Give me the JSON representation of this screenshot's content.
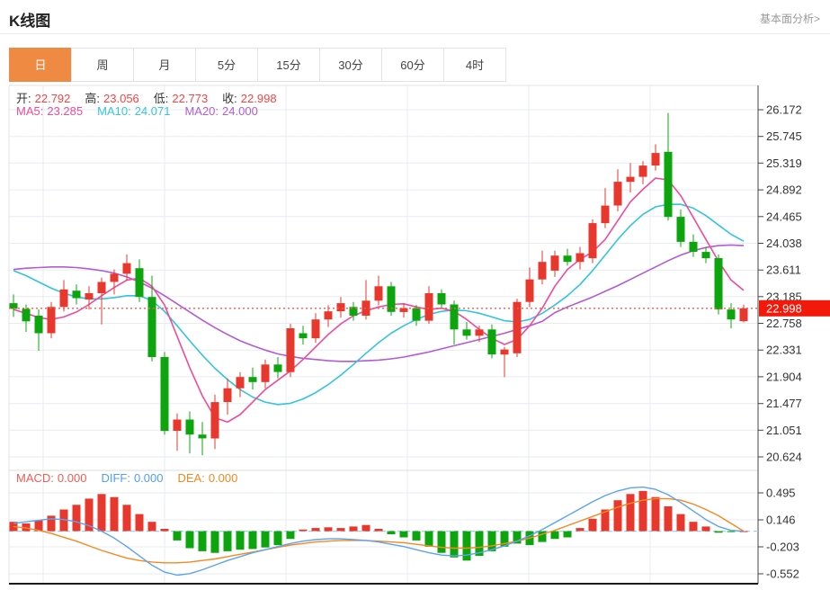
{
  "header": {
    "title": "K线图",
    "link": "基本面分析>"
  },
  "tabs": {
    "items": [
      "日",
      "周",
      "月",
      "5分",
      "15分",
      "30分",
      "60分",
      "4时"
    ],
    "active_index": 0
  },
  "legend": {
    "ohlc": [
      {
        "label": "开:",
        "value": "22.792"
      },
      {
        "label": "高:",
        "value": "23.056"
      },
      {
        "label": "低:",
        "value": "22.773"
      },
      {
        "label": "收:",
        "value": "22.998"
      }
    ],
    "ma": [
      {
        "label": "MA5:",
        "value": "23.285",
        "color": "#f04a9b"
      },
      {
        "label": "MA10:",
        "value": "24.071",
        "color": "#33c4de"
      },
      {
        "label": "MA20:",
        "value": "24.000",
        "color": "#b35bd1"
      }
    ],
    "macd": [
      {
        "label": "MACD:",
        "value": "0.000",
        "color": "#f25a52"
      },
      {
        "label": "DIFF:",
        "value": "0.000",
        "color": "#4f9ff2"
      },
      {
        "label": "DEA:",
        "value": "0.000",
        "color": "#f6871c"
      }
    ]
  },
  "colors": {
    "up": "#e8372c",
    "down": "#0da50d",
    "ma5": "#f04a9b",
    "ma10": "#33c4de",
    "ma20": "#b35bd1",
    "diff_line": "#5ba4ef",
    "dea_line": "#f5881f",
    "grid": "#e9ebf2",
    "axis": "#444444",
    "label": "#333333",
    "tab_active": "#ef8a43",
    "badge": "#f2180a",
    "dotted": "#ee5f52",
    "zero_dash": "#9fd4f0",
    "ohlc_label": "#333333",
    "ohlc_value": "#f54343"
  },
  "chart_data": {
    "type": "candlestick+macd",
    "price_axis": {
      "ticks": [
        "26.172",
        "25.745",
        "25.319",
        "24.892",
        "24.465",
        "24.038",
        "23.611",
        "23.185",
        "22.758",
        "22.331",
        "21.904",
        "21.477",
        "21.051",
        "20.624"
      ],
      "current": 22.998,
      "current_label": "22.998"
    },
    "macd_axis": {
      "ticks": [
        "0.495",
        "0.146",
        "-0.203",
        "-0.552"
      ]
    },
    "candles": [
      [
        23.08,
        23.22,
        22.86,
        22.99
      ],
      [
        22.99,
        23.06,
        22.62,
        22.79
      ],
      [
        22.88,
        22.98,
        22.32,
        22.6
      ],
      [
        22.6,
        23.1,
        22.52,
        23.02
      ],
      [
        23.02,
        23.45,
        22.95,
        23.3
      ],
      [
        23.28,
        23.38,
        23.06,
        23.16
      ],
      [
        23.14,
        23.35,
        22.98,
        23.24
      ],
      [
        23.24,
        23.49,
        22.74,
        23.42
      ],
      [
        23.42,
        23.62,
        23.22,
        23.55
      ],
      [
        23.55,
        23.86,
        23.44,
        23.72
      ],
      [
        23.64,
        23.78,
        23.1,
        23.18
      ],
      [
        23.18,
        23.52,
        22.15,
        22.22
      ],
      [
        22.22,
        22.3,
        20.98,
        21.04
      ],
      [
        21.04,
        21.32,
        20.72,
        21.22
      ],
      [
        21.22,
        21.35,
        20.68,
        20.98
      ],
      [
        20.98,
        21.18,
        20.65,
        20.92
      ],
      [
        20.92,
        21.62,
        20.75,
        21.5
      ],
      [
        21.5,
        21.88,
        21.3,
        21.72
      ],
      [
        21.72,
        21.98,
        21.58,
        21.9
      ],
      [
        21.9,
        22.05,
        21.7,
        21.82
      ],
      [
        21.82,
        22.18,
        21.72,
        22.1
      ],
      [
        22.1,
        22.22,
        21.88,
        21.98
      ],
      [
        21.98,
        22.75,
        21.9,
        22.68
      ],
      [
        22.6,
        22.72,
        22.42,
        22.52
      ],
      [
        22.52,
        22.92,
        22.45,
        22.82
      ],
      [
        22.82,
        23.05,
        22.7,
        22.95
      ],
      [
        22.95,
        23.18,
        22.85,
        23.08
      ],
      [
        23.02,
        23.1,
        22.8,
        22.88
      ],
      [
        22.88,
        23.45,
        22.82,
        23.12
      ],
      [
        23.12,
        23.52,
        23.05,
        23.35
      ],
      [
        23.35,
        23.42,
        22.88,
        22.94
      ],
      [
        22.94,
        23.08,
        22.85,
        23.0
      ],
      [
        23.0,
        23.05,
        22.72,
        22.8
      ],
      [
        22.8,
        23.35,
        22.75,
        23.24
      ],
      [
        23.24,
        23.3,
        23.0,
        23.06
      ],
      [
        23.06,
        23.12,
        22.42,
        22.66
      ],
      [
        22.66,
        22.78,
        22.5,
        22.56
      ],
      [
        22.56,
        22.72,
        22.46,
        22.66
      ],
      [
        22.66,
        22.74,
        22.2,
        22.26
      ],
      [
        22.26,
        22.38,
        21.9,
        22.34
      ],
      [
        22.28,
        23.15,
        22.22,
        23.1
      ],
      [
        23.1,
        23.65,
        23.02,
        23.46
      ],
      [
        23.46,
        23.92,
        23.38,
        23.74
      ],
      [
        23.6,
        23.92,
        23.5,
        23.84
      ],
      [
        23.84,
        23.95,
        23.68,
        23.74
      ],
      [
        23.74,
        23.98,
        23.62,
        23.88
      ],
      [
        23.8,
        24.42,
        23.72,
        24.36
      ],
      [
        24.36,
        24.92,
        24.28,
        24.64
      ],
      [
        24.64,
        25.22,
        24.55,
        25.02
      ],
      [
        25.02,
        25.32,
        24.85,
        25.1
      ],
      [
        25.1,
        25.35,
        24.98,
        25.28
      ],
      [
        25.28,
        25.62,
        25.2,
        25.48
      ],
      [
        25.5,
        26.12,
        24.4,
        24.46
      ],
      [
        24.46,
        24.58,
        23.98,
        24.06
      ],
      [
        24.06,
        24.18,
        23.82,
        23.9
      ],
      [
        23.9,
        23.98,
        23.72,
        23.8
      ],
      [
        23.8,
        23.86,
        22.9,
        22.98
      ],
      [
        22.98,
        23.08,
        22.68,
        22.82
      ],
      [
        22.792,
        23.056,
        22.773,
        22.998
      ]
    ],
    "ma5": [
      22.98,
      22.92,
      22.85,
      22.82,
      22.86,
      22.94,
      23.06,
      23.2,
      23.33,
      23.45,
      23.48,
      23.35,
      23.05,
      22.55,
      22.05,
      21.6,
      21.25,
      21.18,
      21.3,
      21.5,
      21.7,
      21.85,
      22.0,
      22.18,
      22.38,
      22.58,
      22.75,
      22.88,
      22.96,
      23.02,
      23.06,
      23.07,
      23.02,
      22.98,
      23.0,
      22.95,
      22.82,
      22.66,
      22.52,
      22.42,
      22.5,
      22.72,
      23.0,
      23.35,
      23.62,
      23.78,
      23.9,
      24.1,
      24.4,
      24.7,
      24.9,
      25.08,
      25.05,
      24.8,
      24.45,
      24.1,
      23.75,
      23.45,
      23.285
    ],
    "ma10": [
      23.6,
      23.52,
      23.42,
      23.32,
      23.24,
      23.18,
      23.15,
      23.15,
      23.17,
      23.2,
      23.2,
      23.12,
      22.95,
      22.72,
      22.48,
      22.25,
      22.04,
      21.86,
      21.7,
      21.58,
      21.5,
      21.46,
      21.48,
      21.55,
      21.65,
      21.78,
      21.93,
      22.1,
      22.28,
      22.45,
      22.6,
      22.72,
      22.82,
      22.9,
      22.95,
      22.97,
      22.96,
      22.92,
      22.86,
      22.8,
      22.78,
      22.82,
      22.92,
      23.05,
      23.2,
      23.38,
      23.6,
      23.85,
      24.1,
      24.32,
      24.5,
      24.62,
      24.66,
      24.66,
      24.6,
      24.48,
      24.33,
      24.18,
      24.071
    ],
    "ma20": [
      23.62,
      23.64,
      23.65,
      23.66,
      23.66,
      23.65,
      23.63,
      23.6,
      23.56,
      23.5,
      23.42,
      23.32,
      23.2,
      23.07,
      22.94,
      22.81,
      22.69,
      22.58,
      22.48,
      22.4,
      22.33,
      22.27,
      22.23,
      22.2,
      22.18,
      22.16,
      22.15,
      22.15,
      22.16,
      22.17,
      22.19,
      22.22,
      22.26,
      22.3,
      22.35,
      22.4,
      22.45,
      22.5,
      22.55,
      22.6,
      22.66,
      22.72,
      22.79,
      22.93,
      23.02,
      23.1,
      23.18,
      23.27,
      23.36,
      23.46,
      23.56,
      23.66,
      23.76,
      23.85,
      23.92,
      23.97,
      24.0,
      24.01,
      24.0
    ],
    "macd_hist": [
      0.12,
      0.1,
      0.14,
      0.2,
      0.28,
      0.34,
      0.42,
      0.48,
      0.44,
      0.34,
      0.22,
      0.12,
      0.03,
      -0.12,
      -0.22,
      -0.26,
      -0.28,
      -0.26,
      -0.24,
      -0.23,
      -0.21,
      -0.18,
      -0.1,
      0.02,
      0.04,
      0.05,
      0.04,
      0.06,
      0.08,
      0.03,
      -0.04,
      -0.08,
      -0.12,
      -0.2,
      -0.28,
      -0.34,
      -0.38,
      -0.32,
      -0.26,
      -0.2,
      -0.16,
      -0.18,
      -0.14,
      -0.1,
      -0.08,
      0.04,
      0.16,
      0.28,
      0.4,
      0.48,
      0.52,
      0.44,
      0.32,
      0.22,
      0.12,
      0.06,
      -0.02,
      -0.01,
      0.0
    ],
    "diff": [
      0.1,
      0.12,
      0.14,
      0.16,
      0.15,
      0.12,
      0.07,
      0.0,
      -0.09,
      -0.2,
      -0.32,
      -0.44,
      -0.53,
      -0.57,
      -0.55,
      -0.5,
      -0.44,
      -0.38,
      -0.33,
      -0.28,
      -0.24,
      -0.2,
      -0.16,
      -0.13,
      -0.11,
      -0.1,
      -0.1,
      -0.11,
      -0.12,
      -0.14,
      -0.17,
      -0.2,
      -0.24,
      -0.28,
      -0.31,
      -0.32,
      -0.31,
      -0.28,
      -0.24,
      -0.19,
      -0.13,
      -0.06,
      0.02,
      0.11,
      0.2,
      0.29,
      0.38,
      0.46,
      0.52,
      0.56,
      0.57,
      0.54,
      0.47,
      0.37,
      0.26,
      0.15,
      0.06,
      0.01,
      0.0
    ],
    "dea": [
      0.06,
      0.04,
      0.01,
      -0.03,
      -0.08,
      -0.13,
      -0.19,
      -0.25,
      -0.3,
      -0.35,
      -0.38,
      -0.4,
      -0.41,
      -0.41,
      -0.4,
      -0.38,
      -0.36,
      -0.33,
      -0.3,
      -0.27,
      -0.24,
      -0.21,
      -0.18,
      -0.16,
      -0.14,
      -0.13,
      -0.12,
      -0.12,
      -0.12,
      -0.13,
      -0.14,
      -0.15,
      -0.17,
      -0.19,
      -0.21,
      -0.22,
      -0.22,
      -0.21,
      -0.19,
      -0.16,
      -0.13,
      -0.09,
      -0.04,
      0.01,
      0.07,
      0.13,
      0.19,
      0.25,
      0.31,
      0.36,
      0.4,
      0.42,
      0.42,
      0.4,
      0.35,
      0.28,
      0.2,
      0.1,
      0.0
    ]
  }
}
